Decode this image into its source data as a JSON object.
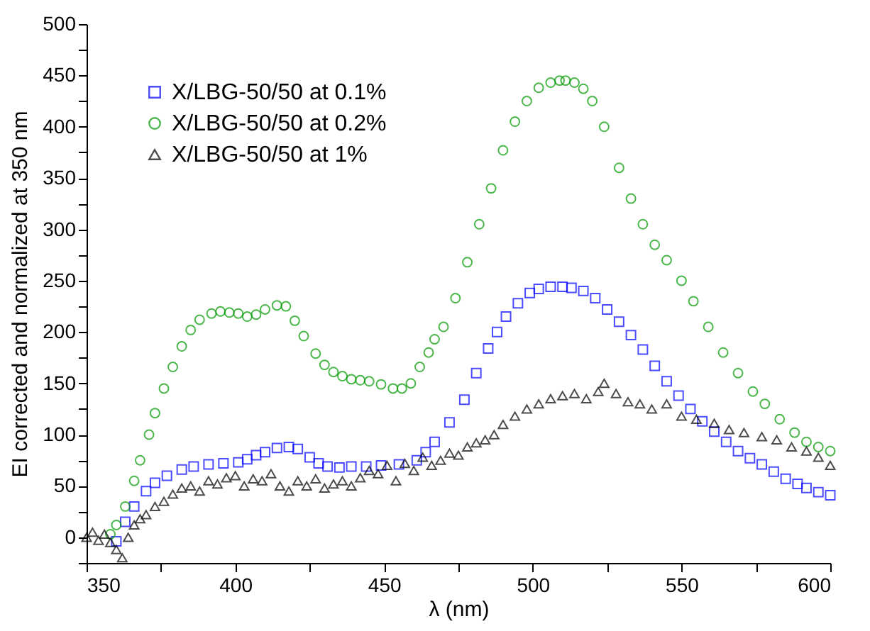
{
  "chart_data": {
    "type": "scatter",
    "xlabel": "λ (nm)",
    "ylabel": "EI corrected and normalized at 350 nm",
    "xlim": [
      350,
      600
    ],
    "ylim": [
      -25,
      500
    ],
    "xticks": [
      350,
      {
        "value": 375,
        "label": null
      },
      400,
      {
        "value": 425,
        "label": null
      },
      450,
      {
        "value": 475,
        "label": null
      },
      500,
      {
        "value": 525,
        "label": null
      },
      550,
      {
        "value": 575,
        "label": null
      },
      600
    ],
    "yticks": [
      {
        "value": -25,
        "label": null
      },
      0,
      {
        "value": 25,
        "label": null
      },
      50,
      {
        "value": 75,
        "label": null
      },
      100,
      {
        "value": 125,
        "label": null
      },
      150,
      {
        "value": 175,
        "label": null
      },
      200,
      {
        "value": 225,
        "label": null
      },
      250,
      {
        "value": 275,
        "label": null
      },
      300,
      {
        "value": 325,
        "label": null
      },
      350,
      {
        "value": 375,
        "label": null
      },
      400,
      {
        "value": 425,
        "label": null
      },
      450,
      {
        "value": 475,
        "label": null
      },
      500
    ],
    "legend": "top left",
    "grid": false,
    "series": [
      {
        "name": "X/LBG-50/50 at 0.1%",
        "color": "#0000ff",
        "marker": "square",
        "x": [
          360,
          363,
          366,
          370,
          373,
          377,
          382,
          386,
          391,
          396,
          401,
          404,
          407,
          410,
          414,
          418,
          421,
          425,
          428,
          431,
          435,
          439,
          444,
          449,
          455,
          461,
          464,
          467,
          472,
          477,
          481,
          485,
          488,
          491,
          495,
          499,
          502,
          506,
          510,
          513,
          517,
          521,
          525,
          529,
          533,
          537,
          541,
          545,
          549,
          553,
          557,
          561,
          565,
          569,
          573,
          577,
          581,
          585,
          589,
          592,
          596,
          600
        ],
        "values": [
          -4,
          15,
          30,
          45,
          53,
          60,
          66,
          69,
          71,
          72,
          73,
          76,
          80,
          83,
          87,
          88,
          86,
          78,
          72,
          69,
          68,
          69,
          69,
          70,
          71,
          75,
          83,
          93,
          112,
          134,
          160,
          184,
          200,
          215,
          228,
          238,
          242,
          244,
          244,
          243,
          240,
          233,
          222,
          210,
          197,
          183,
          167,
          152,
          138,
          125,
          113,
          103,
          93,
          84,
          77,
          71,
          64,
          57,
          52,
          48,
          44,
          41
        ]
      },
      {
        "name": "X/LBG-50/50 at 0.2%",
        "color": "#009900",
        "marker": "circle",
        "x": [
          358,
          360,
          363,
          366,
          368,
          371,
          373,
          376,
          379,
          382,
          385,
          388,
          392,
          395,
          398,
          401,
          404,
          407,
          410,
          414,
          417,
          420,
          423,
          427,
          430,
          433,
          436,
          439,
          442,
          445,
          449,
          453,
          456,
          459,
          462,
          465,
          467,
          470,
          474,
          478,
          482,
          486,
          490,
          494,
          498,
          502,
          506,
          509,
          511,
          514,
          517,
          520,
          524,
          529,
          533,
          537,
          541,
          545,
          550,
          554,
          559,
          564,
          569,
          574,
          578,
          583,
          588,
          592,
          596,
          600
        ],
        "values": [
          3,
          12,
          30,
          55,
          75,
          100,
          121,
          145,
          166,
          186,
          202,
          212,
          218,
          220,
          219,
          218,
          215,
          217,
          222,
          226,
          225,
          211,
          196,
          179,
          168,
          161,
          157,
          154,
          153,
          152,
          149,
          145,
          145,
          150,
          166,
          180,
          193,
          205,
          233,
          268,
          305,
          340,
          377,
          405,
          425,
          438,
          443,
          445,
          445,
          443,
          437,
          425,
          400,
          360,
          330,
          305,
          285,
          270,
          250,
          230,
          205,
          180,
          160,
          142,
          130,
          115,
          102,
          93,
          88,
          84
        ]
      },
      {
        "name": "X/LBG-50/50 at 1%",
        "color": "#000000",
        "marker": "triangle",
        "x": [
          350,
          352,
          354,
          356,
          358,
          360,
          362,
          364,
          366,
          368,
          370,
          373,
          376,
          379,
          382,
          385,
          388,
          391,
          394,
          397,
          400,
          403,
          406,
          409,
          412,
          415,
          418,
          421,
          424,
          427,
          430,
          433,
          436,
          439,
          442,
          445,
          448,
          451,
          454,
          457,
          460,
          463,
          466,
          469,
          472,
          475,
          478,
          481,
          484,
          487,
          490,
          494,
          498,
          502,
          506,
          510,
          514,
          518,
          522,
          524,
          528,
          532,
          536,
          540,
          545,
          550,
          555,
          561,
          566,
          571,
          577,
          582,
          587,
          592,
          596,
          600
        ],
        "values": [
          0,
          5,
          -3,
          3,
          -5,
          -12,
          -20,
          0,
          12,
          18,
          22,
          30,
          35,
          42,
          48,
          50,
          45,
          55,
          52,
          58,
          60,
          50,
          57,
          55,
          62,
          50,
          45,
          55,
          50,
          57,
          48,
          52,
          55,
          50,
          58,
          65,
          62,
          70,
          55,
          72,
          65,
          78,
          70,
          75,
          82,
          80,
          88,
          92,
          95,
          100,
          110,
          118,
          125,
          130,
          135,
          138,
          140,
          135,
          142,
          150,
          140,
          132,
          130,
          125,
          130,
          118,
          115,
          111,
          105,
          102,
          98,
          95,
          88,
          84,
          78,
          70
        ]
      }
    ]
  }
}
